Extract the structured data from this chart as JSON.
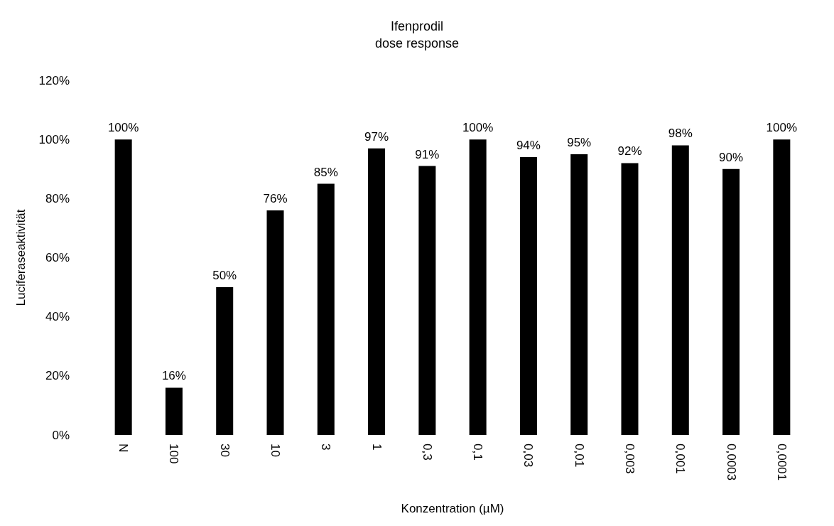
{
  "chart_data": {
    "type": "bar",
    "title": "Ifenprodil\ndose response",
    "xlabel": "Konzentration (µM)",
    "ylabel": "Luciferaseaktivität",
    "categories": [
      "N",
      "100",
      "30",
      "10",
      "3",
      "1",
      "0,3",
      "0,1",
      "0,03",
      "0,01",
      "0,003",
      "0,001",
      "0,0003",
      "0,0001"
    ],
    "values": [
      100,
      16,
      50,
      76,
      85,
      97,
      91,
      100,
      94,
      95,
      92,
      98,
      90,
      100
    ],
    "value_labels": [
      "100%",
      "16%",
      "50%",
      "76%",
      "85%",
      "97%",
      "91%",
      "100%",
      "94%",
      "95%",
      "92%",
      "98%",
      "90%",
      "100%"
    ],
    "color": "#000000",
    "ylim": [
      0,
      120
    ],
    "yticks": [
      {
        "value": 0,
        "label": "0%"
      },
      {
        "value": 20,
        "label": "20%"
      },
      {
        "value": 40,
        "label": "40%"
      },
      {
        "value": 60,
        "label": "60%"
      },
      {
        "value": 80,
        "label": "80%"
      },
      {
        "value": 100,
        "label": "100%"
      },
      {
        "value": 120,
        "label": "120%"
      }
    ],
    "grid": false
  }
}
